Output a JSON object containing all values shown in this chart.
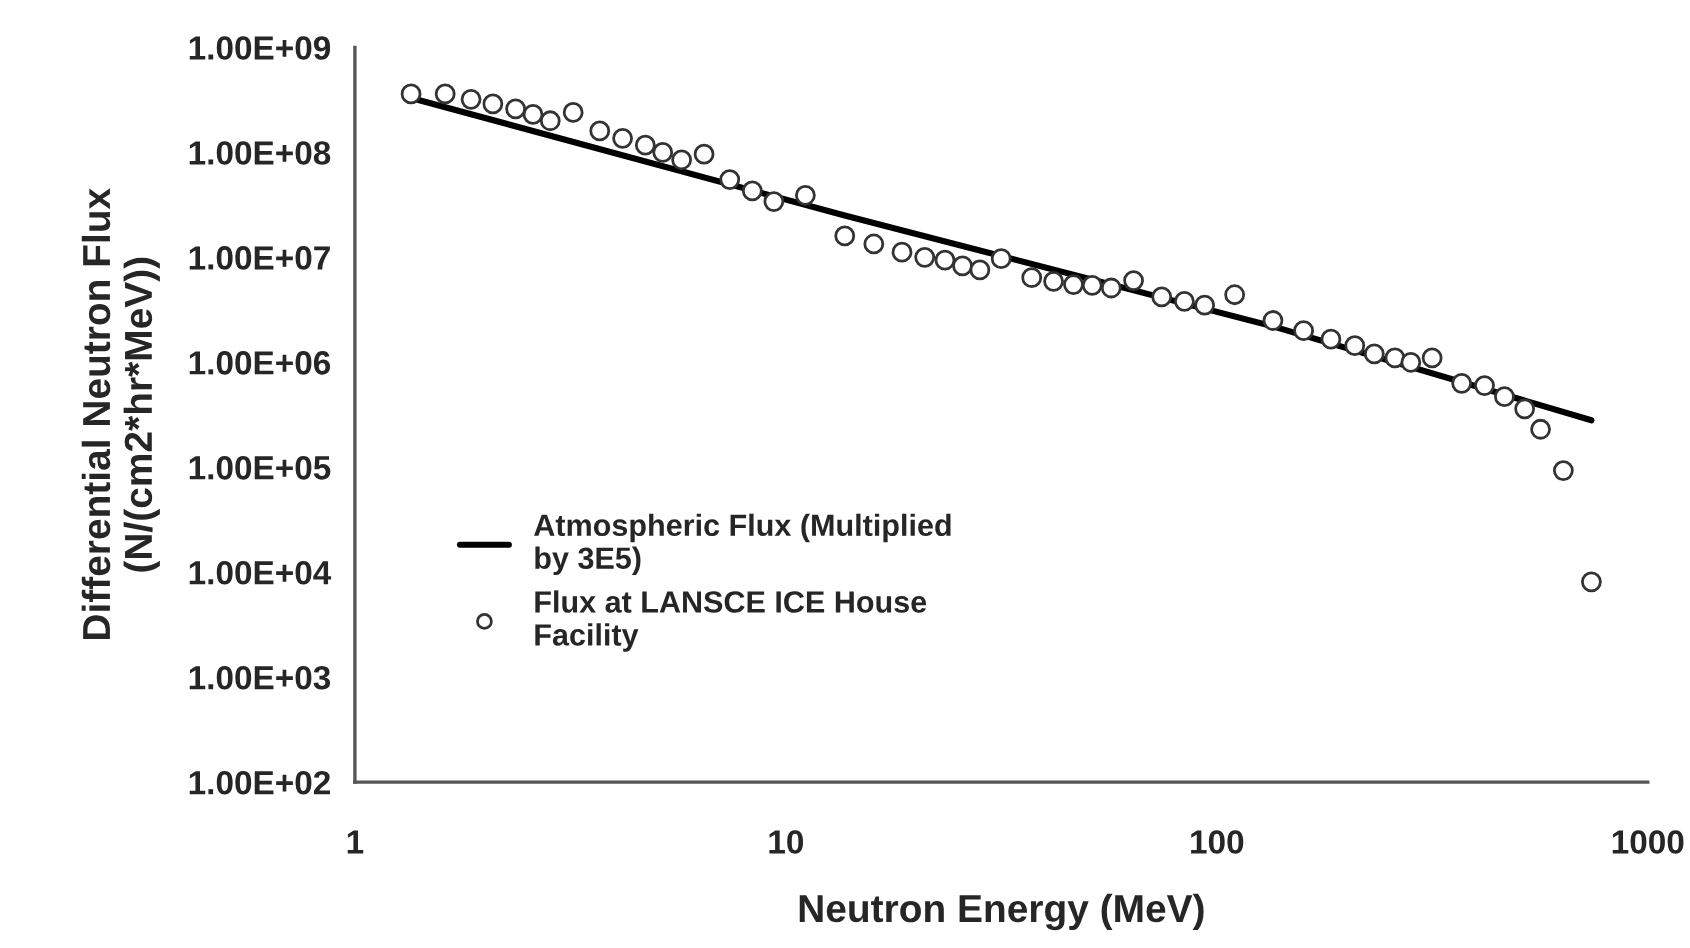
{
  "chart_data": {
    "type": "scatter",
    "xlabel": "Neutron Energy (MeV)",
    "ylabel": "Differential Neutron Flux\n(N/(cm2*hr*MeV))",
    "log": "xy",
    "xlim": [
      1,
      1000
    ],
    "xticks": [
      1,
      10,
      100,
      1000
    ],
    "ylim": [
      100,
      1000000000
    ],
    "yticks": [
      {
        "value": 100,
        "label": "1.00E+02"
      },
      {
        "value": 1000,
        "label": "1.00E+03"
      },
      {
        "value": 10000,
        "label": "1.00E+04"
      },
      {
        "value": 100000,
        "label": "1.00E+05"
      },
      {
        "value": 1000000,
        "label": "1.00E+06"
      },
      {
        "value": 10000000,
        "label": "1.00E+07"
      },
      {
        "value": 100000000,
        "label": "1.00E+08"
      },
      {
        "value": 1000000000,
        "label": "1.00E+09"
      }
    ],
    "grid": false,
    "legend": "lower left",
    "series": [
      {
        "name": "Atmospheric Flux (Multiplied by 3E5)",
        "type": "line",
        "color": "#000000",
        "marker": "none",
        "line_style": "solid",
        "x": [
          1.35,
          13.7,
          135,
          740
        ],
        "values": [
          330000000,
          25000000,
          2200000,
          280000
        ]
      },
      {
        "name": "Flux at LANSCE ICE House Facility",
        "color": "#333333",
        "marker": "circle",
        "x": [
          1.35,
          1.62,
          1.86,
          2.09,
          2.36,
          2.59,
          2.84,
          3.21,
          3.7,
          4.18,
          4.72,
          5.18,
          5.73,
          6.46,
          7.41,
          8.36,
          9.38,
          11.1,
          13.7,
          16.0,
          18.6,
          21.0,
          23.4,
          25.7,
          28.2,
          31.6,
          37.2,
          41.8,
          46.5,
          51.4,
          56.9,
          64.1,
          74.5,
          84.1,
          93.7,
          110,
          135,
          159,
          184,
          209,
          232,
          259,
          282,
          316,
          370,
          418,
          465,
          518,
          564,
          637,
          740
        ],
        "values": [
          360000000,
          360000000,
          320000000,
          290000000,
          260000000,
          230000000,
          200000000,
          240000000,
          160000000,
          136000000,
          117000000,
          100000000,
          85000000,
          96000000,
          55000000,
          43000000,
          34000000,
          39000000,
          16000000,
          13400000,
          11200000,
          10000000,
          9400000,
          8300000,
          7600000,
          9700000,
          6400000,
          5900000,
          5500000,
          5400000,
          5100000,
          6000000,
          4200000,
          3800000,
          3500000,
          4400000,
          2500000,
          2000000,
          1660000,
          1440000,
          1200000,
          1100000,
          1000000,
          1100000,
          630000,
          600000,
          470000,
          360000,
          230000,
          93000,
          8100
        ]
      }
    ]
  }
}
